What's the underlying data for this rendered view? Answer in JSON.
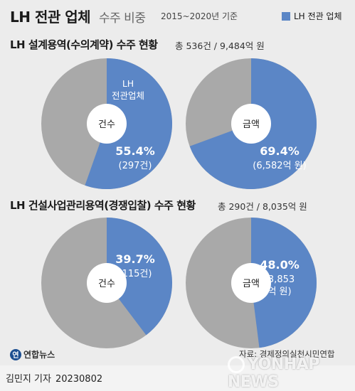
{
  "title": {
    "main": "LH 전관 업체",
    "sub": "수주 비중",
    "period": "2015~2020년 기준"
  },
  "legend": {
    "label": "LH 전관 업체",
    "color": "#5b86c6"
  },
  "colors": {
    "highlight": "#5b86c6",
    "rest": "#a9a9a9",
    "center": "#ffffff"
  },
  "sections": [
    {
      "title": "LH 설계용역(수의계약) 수주 현황",
      "total": "총 536건 / 9,484억 원"
    },
    {
      "title": "LH 건설사업관리용역(경쟁입찰) 수주 현황",
      "total": "총 290건 / 8,035억 원"
    }
  ],
  "chart_data": [
    {
      "type": "pie",
      "section": "LH 설계용역(수의계약) 수주 현황",
      "center_label": "건수",
      "slices": [
        {
          "label": "LH 전관업체",
          "value": 55.4,
          "detail": "(297건)"
        },
        {
          "label": "",
          "value": 44.6
        }
      ],
      "inner_label": [
        "LH",
        "전관업체"
      ],
      "value_text": "55.4%",
      "detail_lines": [
        "(297건)"
      ]
    },
    {
      "type": "pie",
      "section": "LH 설계용역(수의계약) 수주 현황",
      "center_label": "금액",
      "slices": [
        {
          "label": "LH 전관업체",
          "value": 69.4,
          "detail": "(6,582억 원)"
        },
        {
          "label": "",
          "value": 30.6
        }
      ],
      "value_text": "69.4%",
      "detail_lines": [
        "(6,582억 원)"
      ]
    },
    {
      "type": "pie",
      "section": "LH 건설사업관리용역(경쟁입찰) 수주 현황",
      "center_label": "건수",
      "slices": [
        {
          "label": "LH 전관업체",
          "value": 39.7,
          "detail": "(115건)"
        },
        {
          "label": "",
          "value": 60.3
        }
      ],
      "value_text": "39.7%",
      "detail_lines": [
        "(115건)"
      ]
    },
    {
      "type": "pie",
      "section": "LH 건설사업관리용역(경쟁입찰) 수주 현황",
      "center_label": "금액",
      "slices": [
        {
          "label": "LH 전관업체",
          "value": 48.0,
          "detail": "(3,853 억 원)"
        },
        {
          "label": "",
          "value": 52.0
        }
      ],
      "value_text": "48.0%",
      "detail_lines": [
        "(3,853",
        "억 원)"
      ]
    }
  ],
  "footer": {
    "logo_glyph": "연",
    "logo_text": "연합뉴스",
    "source": "자료: 경제정의실천시민연합",
    "watermark": "YONHAP NEWS",
    "author": "김민지 기자",
    "date": "20230802"
  }
}
